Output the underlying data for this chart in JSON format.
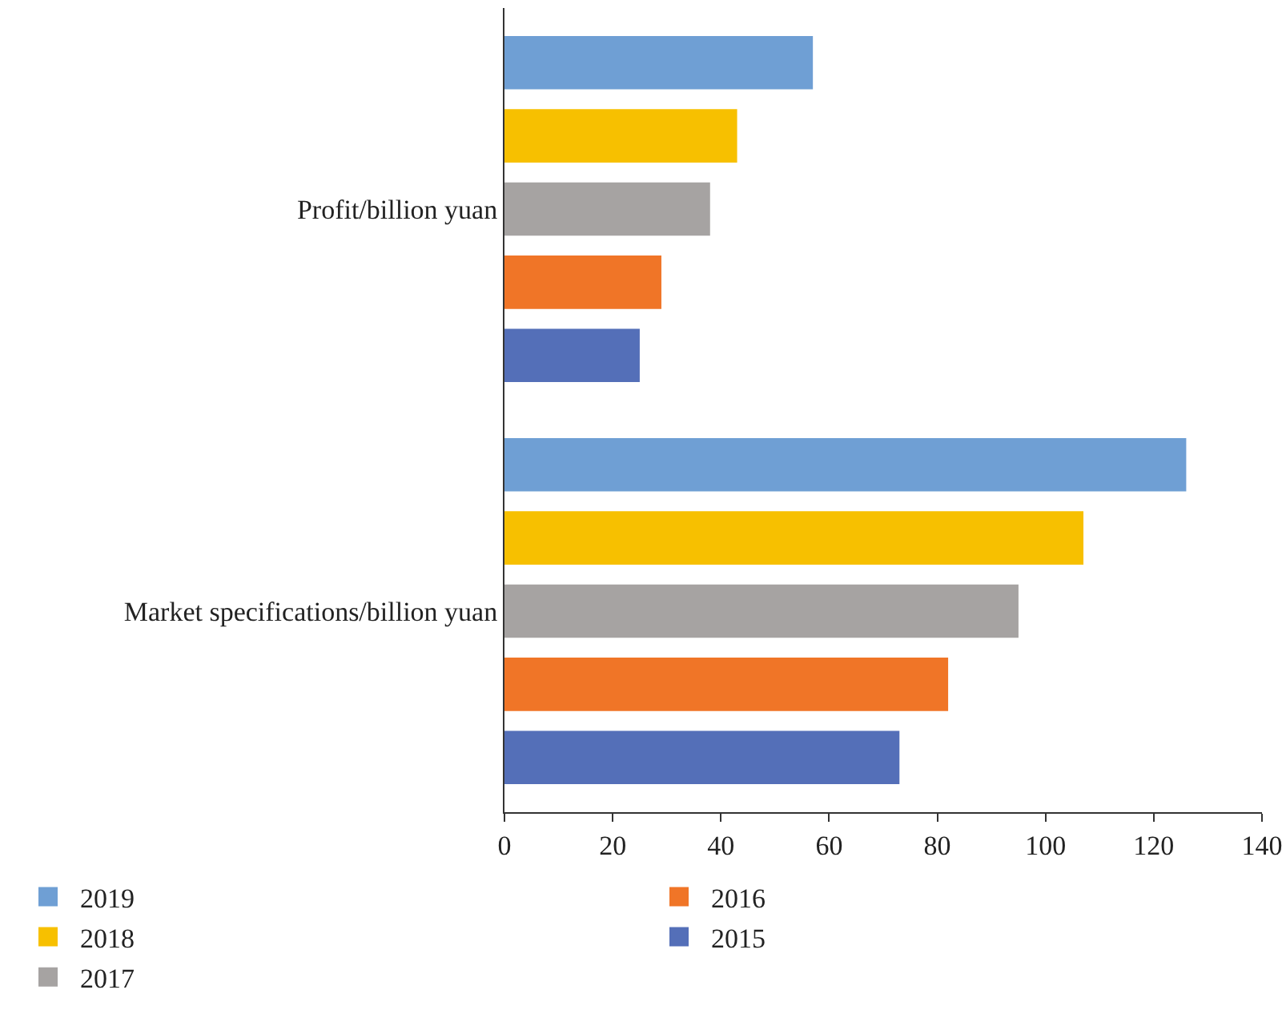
{
  "chart_data": {
    "type": "bar",
    "orientation": "horizontal",
    "categories": [
      "Profit/billion yuan",
      "Market specifications/billion yuan"
    ],
    "series": [
      {
        "name": "2019",
        "color": "#6f9fd4",
        "values": [
          57,
          126
        ]
      },
      {
        "name": "2018",
        "color": "#f7c000",
        "values": [
          43,
          107
        ]
      },
      {
        "name": "2017",
        "color": "#a6a3a2",
        "values": [
          38,
          95
        ]
      },
      {
        "name": "2016",
        "color": "#f07527",
        "values": [
          29,
          82
        ]
      },
      {
        "name": "2015",
        "color": "#546fb8",
        "values": [
          25,
          73
        ]
      }
    ],
    "xlim": [
      0,
      140
    ],
    "xticks": [
      0,
      20,
      40,
      60,
      80,
      100,
      120,
      140
    ],
    "grid": false,
    "legend": "bottom"
  }
}
